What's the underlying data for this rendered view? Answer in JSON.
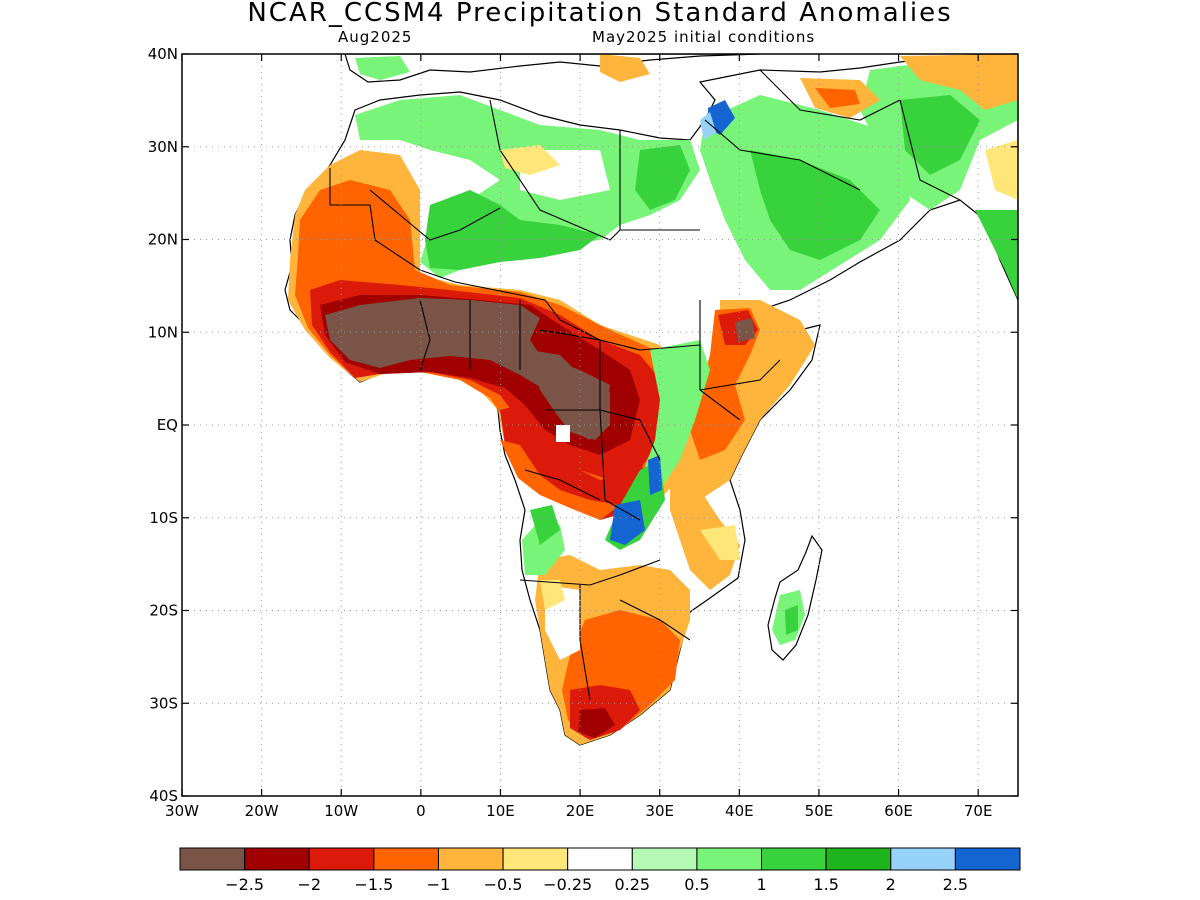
{
  "title": "NCAR_CCSM4 Precipitation Standard Anomalies",
  "subtitle_left": "Aug2025",
  "subtitle_right": "May2025 initial conditions",
  "map": {
    "lon_range": [
      -30,
      75
    ],
    "lat_range": [
      -40,
      40
    ],
    "lat_ticks": [
      {
        "value": 40,
        "label": "40N"
      },
      {
        "value": 30,
        "label": "30N"
      },
      {
        "value": 20,
        "label": "20N"
      },
      {
        "value": 10,
        "label": "10N"
      },
      {
        "value": 0,
        "label": "EQ"
      },
      {
        "value": -10,
        "label": "10S"
      },
      {
        "value": -20,
        "label": "20S"
      },
      {
        "value": -30,
        "label": "30S"
      },
      {
        "value": -40,
        "label": "40S"
      }
    ],
    "lon_ticks": [
      {
        "value": -30,
        "label": "30W"
      },
      {
        "value": -20,
        "label": "20W"
      },
      {
        "value": -10,
        "label": "10W"
      },
      {
        "value": 0,
        "label": "0"
      },
      {
        "value": 10,
        "label": "10E"
      },
      {
        "value": 20,
        "label": "20E"
      },
      {
        "value": 30,
        "label": "30E"
      },
      {
        "value": 40,
        "label": "40E"
      },
      {
        "value": 50,
        "label": "50E"
      },
      {
        "value": 60,
        "label": "60E"
      },
      {
        "value": 70,
        "label": "70E"
      }
    ],
    "gridlines": true
  },
  "colorbar": {
    "colors": [
      "#7b5448",
      "#a00000",
      "#dc1a0a",
      "#ff6400",
      "#ffb43c",
      "#ffe678",
      "#ffffff",
      "#b4fab4",
      "#78f578",
      "#37d23c",
      "#1eb41e",
      "#96d2fa",
      "#1464d2"
    ],
    "labels": [
      "−2.5",
      "−2",
      "−1.5",
      "−1",
      "−0.5",
      "−0.25",
      "0.25",
      "0.5",
      "1",
      "1.5",
      "2",
      "2.5"
    ]
  }
}
